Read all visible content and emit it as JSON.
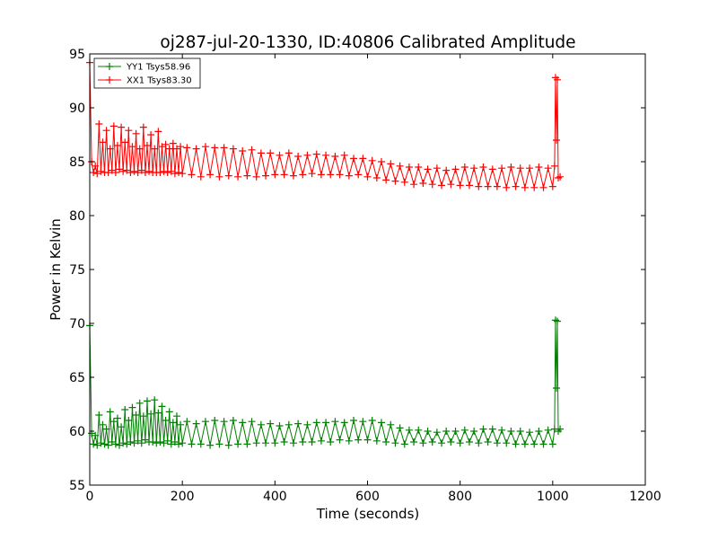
{
  "chart_data": {
    "type": "line",
    "title": "oj287-jul-20-1330, ID:40806 Calibrated Amplitude",
    "xlabel": "Time (seconds)",
    "ylabel": "Power in Kelvin",
    "xlim": [
      0,
      1200
    ],
    "ylim": [
      55,
      95
    ],
    "xticks": [
      "0",
      "200",
      "400",
      "600",
      "800",
      "1000",
      "1200"
    ],
    "yticks": [
      "55",
      "60",
      "65",
      "70",
      "75",
      "80",
      "85",
      "90",
      "95"
    ],
    "grid": false,
    "legend_position": "top-left",
    "marker": "plus",
    "series": [
      {
        "name": "YY1 Tsys58.96",
        "color": "#008000",
        "x": [
          0,
          4,
          8,
          12,
          16,
          20,
          24,
          28,
          32,
          36,
          40,
          44,
          48,
          52,
          56,
          60,
          64,
          68,
          72,
          76,
          80,
          84,
          88,
          92,
          96,
          100,
          104,
          108,
          112,
          116,
          120,
          124,
          128,
          132,
          136,
          140,
          144,
          148,
          152,
          156,
          160,
          164,
          168,
          172,
          176,
          180,
          184,
          188,
          192,
          196,
          200,
          210,
          220,
          230,
          240,
          250,
          260,
          270,
          280,
          290,
          300,
          310,
          320,
          330,
          340,
          350,
          360,
          370,
          380,
          390,
          400,
          410,
          420,
          430,
          440,
          450,
          460,
          470,
          480,
          490,
          500,
          510,
          520,
          530,
          540,
          550,
          560,
          570,
          580,
          590,
          600,
          610,
          620,
          630,
          640,
          650,
          660,
          670,
          680,
          690,
          700,
          710,
          720,
          730,
          740,
          750,
          760,
          770,
          780,
          790,
          800,
          810,
          820,
          830,
          840,
          850,
          860,
          870,
          880,
          890,
          900,
          910,
          920,
          930,
          940,
          950,
          960,
          970,
          980,
          990,
          1000,
          1004,
          1006,
          1008,
          1010,
          1012,
          1016
        ],
        "y": [
          69.8,
          59.8,
          58.8,
          59.6,
          58.7,
          61.5,
          58.9,
          60.6,
          58.8,
          60.2,
          58.7,
          61.8,
          59.0,
          60.9,
          58.8,
          61.2,
          58.7,
          60.4,
          58.9,
          62.0,
          58.8,
          61.0,
          59.0,
          62.2,
          58.9,
          61.5,
          59.1,
          62.6,
          58.9,
          61.4,
          59.2,
          62.8,
          59.0,
          61.6,
          59.0,
          62.9,
          58.9,
          61.7,
          59.0,
          62.3,
          58.9,
          61.0,
          59.1,
          61.8,
          58.8,
          60.8,
          59.0,
          61.4,
          58.8,
          60.6,
          58.9,
          60.9,
          58.8,
          60.7,
          58.8,
          60.9,
          58.7,
          61.0,
          58.8,
          60.9,
          58.7,
          61.0,
          58.8,
          60.8,
          58.8,
          60.9,
          58.9,
          60.6,
          58.9,
          60.7,
          58.9,
          60.5,
          59.0,
          60.6,
          58.9,
          60.7,
          59.0,
          60.6,
          59.0,
          60.8,
          59.1,
          60.8,
          59.0,
          60.9,
          59.2,
          60.8,
          59.1,
          61.0,
          59.2,
          60.9,
          59.2,
          61.0,
          59.1,
          60.8,
          59.0,
          60.6,
          58.9,
          60.3,
          58.8,
          60.1,
          59.0,
          60.1,
          58.9,
          60.0,
          59.0,
          59.9,
          58.9,
          60.0,
          59.0,
          60.0,
          58.9,
          60.1,
          59.0,
          60.0,
          58.9,
          60.2,
          59.0,
          60.2,
          58.9,
          60.1,
          58.9,
          60.0,
          58.8,
          60.0,
          58.8,
          59.9,
          58.8,
          60.0,
          58.8,
          60.1,
          58.8,
          60.2,
          70.3,
          64.0,
          70.2,
          60.0,
          60.2
        ]
      },
      {
        "name": "XX1 Tsys83.30",
        "color": "#ff0000",
        "x": [
          0,
          4,
          8,
          12,
          16,
          20,
          24,
          28,
          32,
          36,
          40,
          44,
          48,
          52,
          56,
          60,
          64,
          68,
          72,
          76,
          80,
          84,
          88,
          92,
          96,
          100,
          104,
          108,
          112,
          116,
          120,
          124,
          128,
          132,
          136,
          140,
          144,
          148,
          152,
          156,
          160,
          164,
          168,
          172,
          176,
          180,
          184,
          188,
          192,
          196,
          200,
          210,
          220,
          230,
          240,
          250,
          260,
          270,
          280,
          290,
          300,
          310,
          320,
          330,
          340,
          350,
          360,
          370,
          380,
          390,
          400,
          410,
          420,
          430,
          440,
          450,
          460,
          470,
          480,
          490,
          500,
          510,
          520,
          530,
          540,
          550,
          560,
          570,
          580,
          590,
          600,
          610,
          620,
          630,
          640,
          650,
          660,
          670,
          680,
          690,
          700,
          710,
          720,
          730,
          740,
          750,
          760,
          770,
          780,
          790,
          800,
          810,
          820,
          830,
          840,
          850,
          860,
          870,
          880,
          890,
          900,
          910,
          920,
          930,
          940,
          950,
          960,
          970,
          980,
          990,
          1000,
          1004,
          1006,
          1008,
          1010,
          1012,
          1016
        ],
        "y": [
          94.2,
          85.0,
          84.0,
          84.6,
          83.9,
          88.5,
          84.1,
          86.8,
          84.0,
          87.9,
          84.0,
          86.2,
          84.2,
          88.3,
          84.0,
          86.5,
          84.3,
          88.2,
          84.1,
          86.8,
          84.2,
          87.9,
          84.0,
          86.4,
          84.1,
          87.6,
          84.0,
          86.2,
          84.2,
          88.2,
          84.0,
          86.5,
          84.1,
          87.5,
          84.0,
          86.2,
          84.0,
          87.8,
          84.0,
          86.4,
          84.1,
          86.6,
          84.0,
          86.2,
          84.1,
          86.7,
          83.9,
          86.2,
          84.0,
          86.4,
          83.9,
          86.3,
          83.8,
          86.2,
          83.6,
          86.4,
          83.8,
          86.3,
          83.6,
          86.3,
          83.7,
          86.2,
          83.6,
          86.0,
          83.7,
          86.1,
          83.6,
          85.8,
          83.7,
          85.8,
          83.8,
          85.6,
          83.8,
          85.8,
          83.7,
          85.5,
          83.8,
          85.6,
          83.9,
          85.7,
          83.8,
          85.6,
          83.8,
          85.5,
          83.8,
          85.6,
          83.7,
          85.3,
          83.8,
          85.3,
          83.6,
          85.1,
          83.5,
          85.0,
          83.3,
          84.8,
          83.2,
          84.6,
          83.1,
          84.5,
          82.9,
          84.5,
          83.0,
          84.3,
          82.9,
          84.4,
          82.8,
          84.2,
          82.9,
          84.3,
          82.8,
          84.5,
          82.8,
          84.4,
          82.7,
          84.5,
          82.7,
          84.3,
          82.7,
          84.4,
          82.6,
          84.5,
          82.7,
          84.4,
          82.6,
          84.4,
          82.6,
          84.5,
          82.6,
          84.4,
          82.7,
          84.6,
          92.8,
          87.0,
          92.6,
          83.5,
          83.6
        ]
      }
    ]
  }
}
